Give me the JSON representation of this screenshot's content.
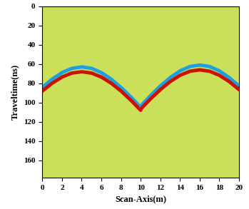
{
  "chart_data": {
    "type": "line",
    "x_label": "Scan-Axis(m)",
    "y_label": "Traveltime(ns)",
    "series": [
      {
        "color": "#1e9fe0",
        "x": [
          0,
          1,
          2,
          3,
          4,
          5,
          6,
          7,
          8,
          9,
          10
        ],
        "values": [
          84.3,
          75.7,
          68.9,
          64.5,
          63,
          64.5,
          68.9,
          75.7,
          84.3,
          94.2,
          105
        ]
      },
      {
        "color": "#cc1100",
        "x": [
          0,
          1,
          2,
          3,
          4,
          5,
          6,
          7,
          8,
          9,
          10
        ],
        "values": [
          88,
          79.9,
          73.5,
          69.4,
          68,
          69.4,
          73.5,
          79.9,
          88,
          97.6,
          108
        ]
      },
      {
        "color": "#1e9fe0",
        "x": [
          10,
          11,
          12,
          13,
          14,
          15,
          16,
          17,
          18,
          19,
          20
        ],
        "values": [
          103.8,
          92.8,
          82.8,
          74.1,
          67.1,
          62.6,
          61,
          62.6,
          67.1,
          74.1,
          82.8
        ]
      },
      {
        "color": "#cc1100",
        "x": [
          10,
          11,
          12,
          13,
          14,
          15,
          16,
          17,
          18,
          19,
          20
        ],
        "values": [
          106.8,
          96.2,
          86.6,
          78.2,
          71.7,
          67.5,
          66,
          67.5,
          71.7,
          78.2,
          86.6
        ]
      }
    ],
    "xlim": [
      0,
      20
    ],
    "xticks": [
      0,
      2,
      4,
      6,
      8,
      10,
      12,
      14,
      16,
      18,
      20
    ],
    "ylim": [
      178,
      0
    ],
    "yticks": [
      0,
      20,
      40,
      60,
      80,
      100,
      120,
      140,
      160
    ],
    "grid": false
  }
}
